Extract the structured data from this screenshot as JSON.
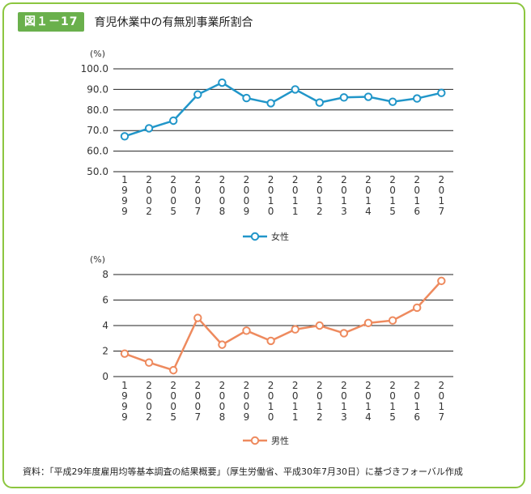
{
  "header": {
    "figure_label": "図１－17",
    "title": "育児休業中の有無別事業所割合"
  },
  "footnote": "資料：「平成29年度雇用均等基本調査の結果概要」（厚生労働省、平成30年7月30日）に基づきフォーバル作成",
  "colors": {
    "female": "#2196c9",
    "male": "#ee8a5e",
    "accent": "#6ab04c",
    "frame": "#8cc63f"
  },
  "chart_data": [
    {
      "type": "line",
      "categories": [
        "1999",
        "2002",
        "2005",
        "2007",
        "2008",
        "2009",
        "2010",
        "2011",
        "2012",
        "2013",
        "2014",
        "2015",
        "2016",
        "2017"
      ],
      "series": [
        {
          "name": "女性",
          "values": [
            67.2,
            71.1,
            74.8,
            87.5,
            93.3,
            85.8,
            83.3,
            90.0,
            83.6,
            86.1,
            86.4,
            84.0,
            85.6,
            88.3
          ]
        }
      ],
      "ylabel": "(%)",
      "ylim": [
        50,
        100
      ],
      "yticks": [
        "50.0",
        "60.0",
        "70.0",
        "80.0",
        "90.0",
        "100.0"
      ],
      "grid": true,
      "legend": "bottom"
    },
    {
      "type": "line",
      "categories": [
        "1999",
        "2002",
        "2005",
        "2007",
        "2008",
        "2009",
        "2010",
        "2011",
        "2012",
        "2013",
        "2014",
        "2015",
        "2016",
        "2017"
      ],
      "series": [
        {
          "name": "男性",
          "values": [
            1.8,
            1.1,
            0.5,
            4.6,
            2.5,
            3.6,
            2.8,
            3.7,
            4.0,
            3.4,
            4.2,
            4.4,
            5.4,
            7.5
          ]
        }
      ],
      "ylabel": "(%)",
      "ylim": [
        0,
        8
      ],
      "yticks": [
        "0",
        "2",
        "4",
        "6",
        "8"
      ],
      "grid": true,
      "legend": "bottom"
    }
  ]
}
